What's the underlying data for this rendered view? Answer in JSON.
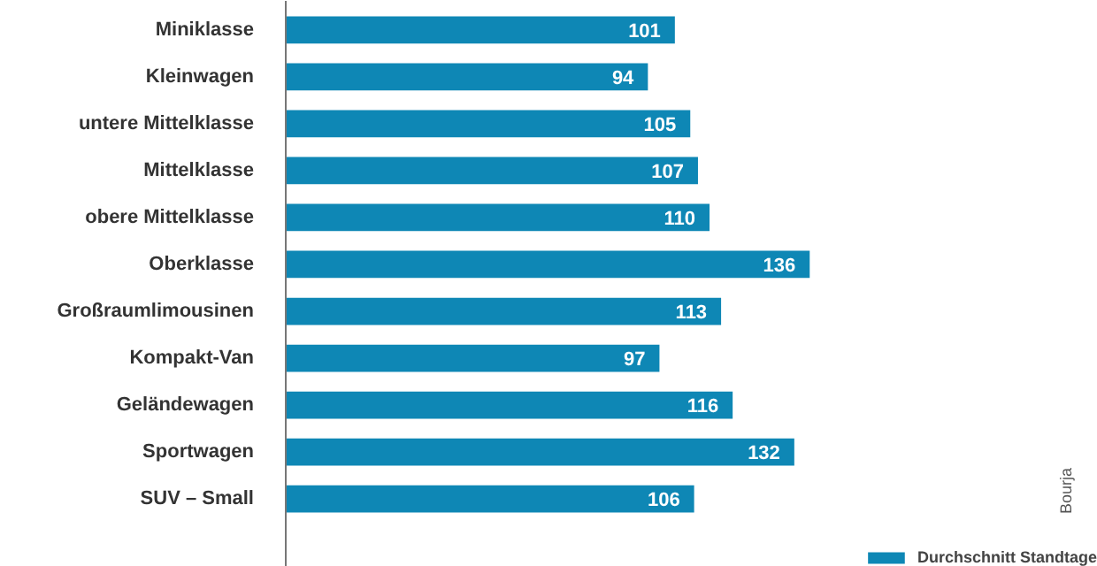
{
  "chart_data": {
    "type": "bar",
    "orientation": "horizontal",
    "categories": [
      "Miniklasse",
      "Kleinwagen",
      "untere Mittelklasse",
      "Mittelklasse",
      "obere Mittelklasse",
      "Oberklasse",
      "Großraumlimousinen",
      "Kompakt-Van",
      "Geländewagen",
      "Sportwagen",
      "SUV – Small"
    ],
    "series": [
      {
        "name": "Durchschnitt Standtage",
        "color": "#0e87b5",
        "values": [
          101,
          94,
          105,
          107,
          110,
          136,
          113,
          97,
          116,
          132,
          106
        ]
      }
    ],
    "data_labels": true,
    "legend": "bottom right",
    "grid": false,
    "annotations": [
      "Bourja"
    ]
  }
}
